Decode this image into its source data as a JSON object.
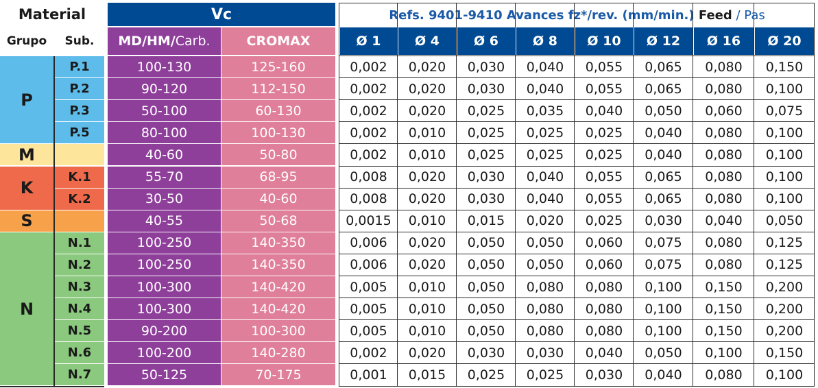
{
  "header": {
    "material": "Material",
    "grupo": "Grupo",
    "sub": "Sub.",
    "vc": "Vc",
    "md_hm": "MD/HM/",
    "carb": "Carb.",
    "cromax": "CROMAX",
    "refs": "Refs. 9401-9410 Avances fz*/rev. (mm/min.) ",
    "feed": "Feed",
    "pas": " / Pas",
    "diameters": [
      "Ø 1",
      "Ø 4",
      "Ø 6",
      "Ø 8",
      "Ø 10",
      "Ø 12",
      "Ø 16",
      "Ø 20"
    ]
  },
  "colors": {
    "P": "#5ebcea",
    "M": "#fde59c",
    "K": "#ef6a4b",
    "S": "#f7a24a",
    "N": "#8bc97e",
    "vc_md": "#8e3f9a",
    "vc_cromax": "#df7f99",
    "header_blue": "#004a93"
  },
  "groups": [
    {
      "label": "P",
      "color_key": "P",
      "start": 0,
      "span": 4
    },
    {
      "label": "M",
      "color_key": "M",
      "start": 4,
      "span": 1
    },
    {
      "label": "K",
      "color_key": "K",
      "start": 5,
      "span": 2
    },
    {
      "label": "S",
      "color_key": "S",
      "start": 7,
      "span": 1
    },
    {
      "label": "N",
      "color_key": "N",
      "start": 8,
      "span": 7
    }
  ],
  "rows": [
    {
      "sub": "P.1",
      "group": "P",
      "md": "100-130",
      "cromax": "125-160",
      "feeds": [
        "0,002",
        "0,020",
        "0,030",
        "0,040",
        "0,055",
        "0,065",
        "0,080",
        "0,150"
      ]
    },
    {
      "sub": "P.2",
      "group": "P",
      "md": "90-120",
      "cromax": "112-150",
      "feeds": [
        "0,002",
        "0,020",
        "0,030",
        "0,040",
        "0,055",
        "0,065",
        "0,080",
        "0,100"
      ]
    },
    {
      "sub": "P.3",
      "group": "P",
      "md": "50-100",
      "cromax": "60-130",
      "feeds": [
        "0,002",
        "0,020",
        "0,025",
        "0,035",
        "0,040",
        "0,050",
        "0,060",
        "0,075"
      ]
    },
    {
      "sub": "P.5",
      "group": "P",
      "md": "80-100",
      "cromax": "100-130",
      "feeds": [
        "0,002",
        "0,010",
        "0,025",
        "0,025",
        "0,025",
        "0,040",
        "0,080",
        "0,100"
      ]
    },
    {
      "sub": "",
      "group": "M",
      "md": "40-60",
      "cromax": "50-80",
      "feeds": [
        "0,002",
        "0,010",
        "0,025",
        "0,025",
        "0,025",
        "0,040",
        "0,080",
        "0,100"
      ]
    },
    {
      "sub": "K.1",
      "group": "K",
      "md": "55-70",
      "cromax": "68-95",
      "feeds": [
        "0,008",
        "0,020",
        "0,030",
        "0,040",
        "0,055",
        "0,065",
        "0,080",
        "0,100"
      ]
    },
    {
      "sub": "K.2",
      "group": "K",
      "md": "30-50",
      "cromax": "40-60",
      "feeds": [
        "0,008",
        "0,020",
        "0,030",
        "0,040",
        "0,055",
        "0,065",
        "0,080",
        "0,100"
      ]
    },
    {
      "sub": "",
      "group": "S",
      "md": "40-55",
      "cromax": "50-68",
      "feeds": [
        "0,0015",
        "0,010",
        "0,015",
        "0,020",
        "0,025",
        "0,030",
        "0,040",
        "0,050"
      ]
    },
    {
      "sub": "N.1",
      "group": "N",
      "md": "100-250",
      "cromax": "140-350",
      "feeds": [
        "0,006",
        "0,020",
        "0,050",
        "0,050",
        "0,060",
        "0,075",
        "0,080",
        "0,125"
      ]
    },
    {
      "sub": "N.2",
      "group": "N",
      "md": "100-250",
      "cromax": "140-350",
      "feeds": [
        "0,006",
        "0,020",
        "0,050",
        "0,050",
        "0,060",
        "0,075",
        "0,080",
        "0,125"
      ]
    },
    {
      "sub": "N.3",
      "group": "N",
      "md": "100-300",
      "cromax": "140-420",
      "feeds": [
        "0,005",
        "0,010",
        "0,050",
        "0,080",
        "0,080",
        "0,100",
        "0,150",
        "0,200"
      ]
    },
    {
      "sub": "N.4",
      "group": "N",
      "md": "100-300",
      "cromax": "140-420",
      "feeds": [
        "0,005",
        "0,010",
        "0,050",
        "0,080",
        "0,080",
        "0,100",
        "0,150",
        "0,200"
      ]
    },
    {
      "sub": "N.5",
      "group": "N",
      "md": "90-200",
      "cromax": "100-300",
      "feeds": [
        "0,005",
        "0,010",
        "0,050",
        "0,080",
        "0,080",
        "0,100",
        "0,150",
        "0,200"
      ]
    },
    {
      "sub": "N.6",
      "group": "N",
      "md": "100-200",
      "cromax": "140-280",
      "feeds": [
        "0,002",
        "0,020",
        "0,030",
        "0,030",
        "0,040",
        "0,050",
        "0,100",
        "0,150"
      ]
    },
    {
      "sub": "N.7",
      "group": "N",
      "md": "50-125",
      "cromax": "70-175",
      "feeds": [
        "0,001",
        "0,015",
        "0,025",
        "0,025",
        "0,030",
        "0,040",
        "0,080",
        "0,100"
      ]
    }
  ]
}
